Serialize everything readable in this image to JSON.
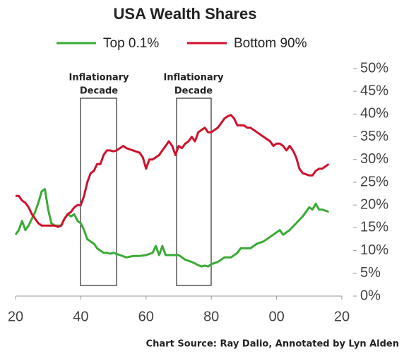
{
  "chart_data": {
    "type": "line",
    "title": "USA Wealth Shares",
    "series": [
      {
        "name": "Top 0.1%",
        "color": "#3aaa35",
        "x": [
          20,
          21,
          22,
          23,
          24,
          25,
          26,
          27,
          28,
          29,
          30,
          31,
          32,
          33,
          34,
          35,
          36,
          37,
          38,
          39,
          40,
          41,
          42,
          43,
          44,
          45,
          46,
          47,
          48,
          49,
          50,
          52,
          54,
          56,
          58,
          60,
          62,
          63,
          64,
          65,
          66,
          68,
          70,
          72,
          74,
          76,
          77,
          78,
          79,
          80,
          82,
          84,
          86,
          88,
          89,
          91,
          92,
          94,
          96,
          98,
          100,
          101,
          102,
          104,
          106,
          108,
          110,
          111,
          112,
          113,
          114,
          116
        ],
        "values": [
          13.5,
          14.5,
          16.5,
          14.5,
          15.5,
          17,
          18.5,
          20.5,
          23,
          23.5,
          19,
          16,
          15.5,
          15.5,
          15.5,
          17,
          18,
          17.5,
          18,
          16.5,
          16,
          14.5,
          12.5,
          12,
          11.5,
          10.5,
          10,
          9.5,
          9.5,
          9.3,
          9.5,
          9,
          8.5,
          8.8,
          8.8,
          9,
          9.5,
          11,
          9,
          11,
          9,
          9,
          9,
          8,
          7.5,
          6.8,
          6.5,
          6.7,
          6.5,
          7,
          7.5,
          8.5,
          8.5,
          9.5,
          10.5,
          10.5,
          10.5,
          11.5,
          12,
          13,
          14,
          14.5,
          13.5,
          14.5,
          16,
          17.5,
          19.5,
          19,
          20.3,
          19,
          19,
          18.5
        ]
      },
      {
        "name": "Bottom 90%",
        "color": "#d0112b",
        "x": [
          20,
          21,
          22,
          23,
          24,
          25,
          26,
          27,
          28,
          29,
          30,
          31,
          32,
          33,
          34,
          35,
          36,
          37,
          38,
          39,
          40,
          41,
          42,
          43,
          44,
          45,
          46,
          47,
          48,
          49,
          50,
          51,
          52,
          53,
          54,
          56,
          58,
          59,
          60,
          61,
          62,
          63,
          64,
          65,
          66,
          67,
          68,
          69,
          70,
          71,
          72,
          73,
          74,
          75,
          76,
          77,
          78,
          79,
          80,
          81,
          82,
          83,
          84,
          85,
          86,
          87,
          88,
          90,
          91,
          92,
          94,
          96,
          98,
          99,
          100,
          101,
          102,
          103,
          104,
          105,
          106,
          107,
          108,
          110,
          111,
          112,
          113,
          114,
          115,
          116
        ],
        "values": [
          22,
          22,
          21,
          20.5,
          19.5,
          18,
          17,
          16,
          15.5,
          15.5,
          15.5,
          15.5,
          15.5,
          15.2,
          15.5,
          17,
          18,
          18.5,
          19.5,
          20,
          20,
          22,
          25,
          27,
          27.5,
          29,
          29,
          31,
          32,
          32,
          31.8,
          32,
          32.5,
          33,
          32.5,
          32,
          31.5,
          30.5,
          28,
          30,
          30,
          30.5,
          31,
          32,
          33,
          34,
          33,
          31,
          33,
          32.5,
          33.5,
          34,
          35,
          34,
          36,
          36.5,
          37,
          36,
          36,
          36.5,
          37,
          38,
          39,
          39.5,
          39.8,
          39,
          37.5,
          37.5,
          37,
          37,
          36,
          35,
          34,
          33,
          33.5,
          33.5,
          33,
          32,
          33,
          32,
          30.5,
          28,
          27,
          26.5,
          26.5,
          27.5,
          28,
          28,
          28.5,
          29
        ]
      }
    ],
    "xlim": [
      20,
      120
    ],
    "xticks": [
      20,
      40,
      60,
      80,
      {
        "value": 100,
        "label": "00"
      },
      {
        "value": 120,
        "label": "20"
      }
    ],
    "ylim": [
      0,
      50
    ],
    "yticks": [
      {
        "value": 0,
        "label": "0%"
      },
      {
        "value": 5,
        "label": "5%"
      },
      {
        "value": 10,
        "label": "10%"
      },
      {
        "value": 15,
        "label": "15%"
      },
      {
        "value": 20,
        "label": "20%"
      },
      {
        "value": 25,
        "label": "25%"
      },
      {
        "value": 30,
        "label": "30%"
      },
      {
        "value": 35,
        "label": "35%"
      },
      {
        "value": 40,
        "label": "40%"
      },
      {
        "value": 45,
        "label": "45%"
      },
      {
        "value": 50,
        "label": "50%"
      }
    ],
    "annotations": [
      [
        "Inflationary",
        "Decade"
      ],
      [
        "Inflationary",
        "Decade"
      ]
    ],
    "source": "Chart Source: Ray Dalio, Annotated by Lyn Alden"
  }
}
